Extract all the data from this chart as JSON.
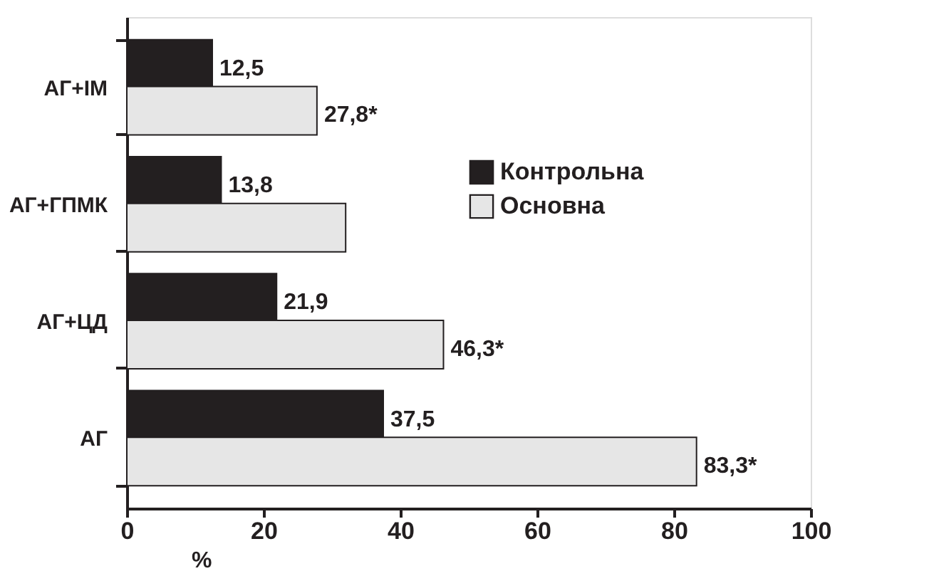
{
  "chart_data": {
    "type": "bar",
    "orientation": "horizontal",
    "xlabel": "%",
    "categories": [
      "АГ+ІМ",
      "АГ+ГПМК",
      "АГ+ЦД",
      "АГ"
    ],
    "series": [
      {
        "name": "Контрольна",
        "color": "#231f20",
        "values": [
          12.5,
          13.8,
          21.9,
          37.5
        ],
        "value_labels": [
          "12,5",
          "13,8",
          "21,9",
          "37,5"
        ]
      },
      {
        "name": "Основна",
        "color": "#e6e6e6",
        "values": [
          27.8,
          32,
          46.3,
          83.3
        ],
        "value_labels": [
          "27,8*",
          null,
          "46,3*",
          "83,3*"
        ]
      }
    ],
    "xlim": [
      0,
      100
    ],
    "xticks": [
      0,
      20,
      40,
      60,
      80,
      100
    ],
    "grid": false,
    "legend": "right"
  }
}
